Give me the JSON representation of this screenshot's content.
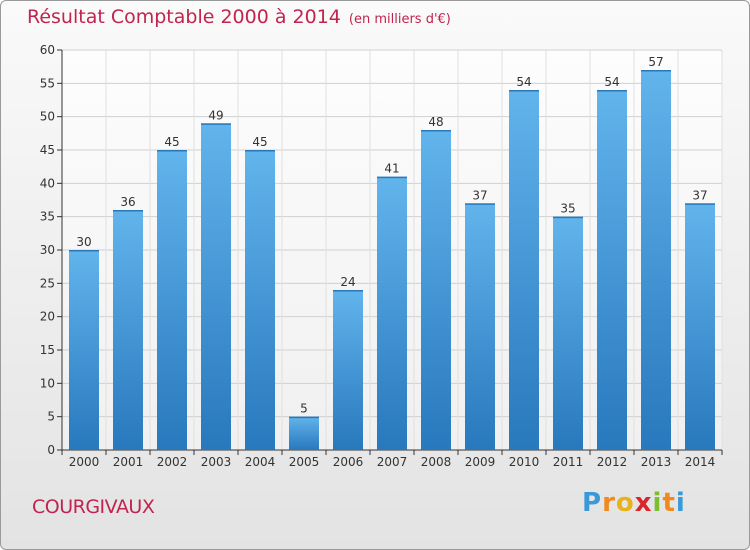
{
  "chart_data": {
    "type": "bar",
    "title": "Résultat Comptable 2000 à 2014",
    "subtitle": "(en milliers d'€)",
    "categories": [
      "2000",
      "2001",
      "2002",
      "2003",
      "2004",
      "2005",
      "2006",
      "2007",
      "2008",
      "2009",
      "2010",
      "2011",
      "2012",
      "2013",
      "2014"
    ],
    "values": [
      30,
      36,
      45,
      49,
      45,
      5,
      24,
      41,
      48,
      37,
      54,
      35,
      54,
      57,
      37
    ],
    "ylim": [
      0,
      60
    ],
    "yticks": [
      0,
      5,
      10,
      15,
      20,
      25,
      30,
      35,
      40,
      45,
      50,
      55,
      60
    ],
    "grid": true,
    "xlabel": "",
    "ylabel": ""
  },
  "footer": {
    "city": "COURGIVAUX",
    "logo_letters": [
      "P",
      "r",
      "o",
      "x",
      "i",
      "t",
      "i"
    ]
  },
  "colors": {
    "bar_light": "#5eb0ea",
    "bar_dark": "#2a7fc4",
    "accent": "#c0244f",
    "logo": [
      "#3a9ad9",
      "#f08a1c",
      "#e8b21a",
      "#d8262c",
      "#7bbf2f",
      "#f08a1c",
      "#3a9ad9"
    ]
  }
}
